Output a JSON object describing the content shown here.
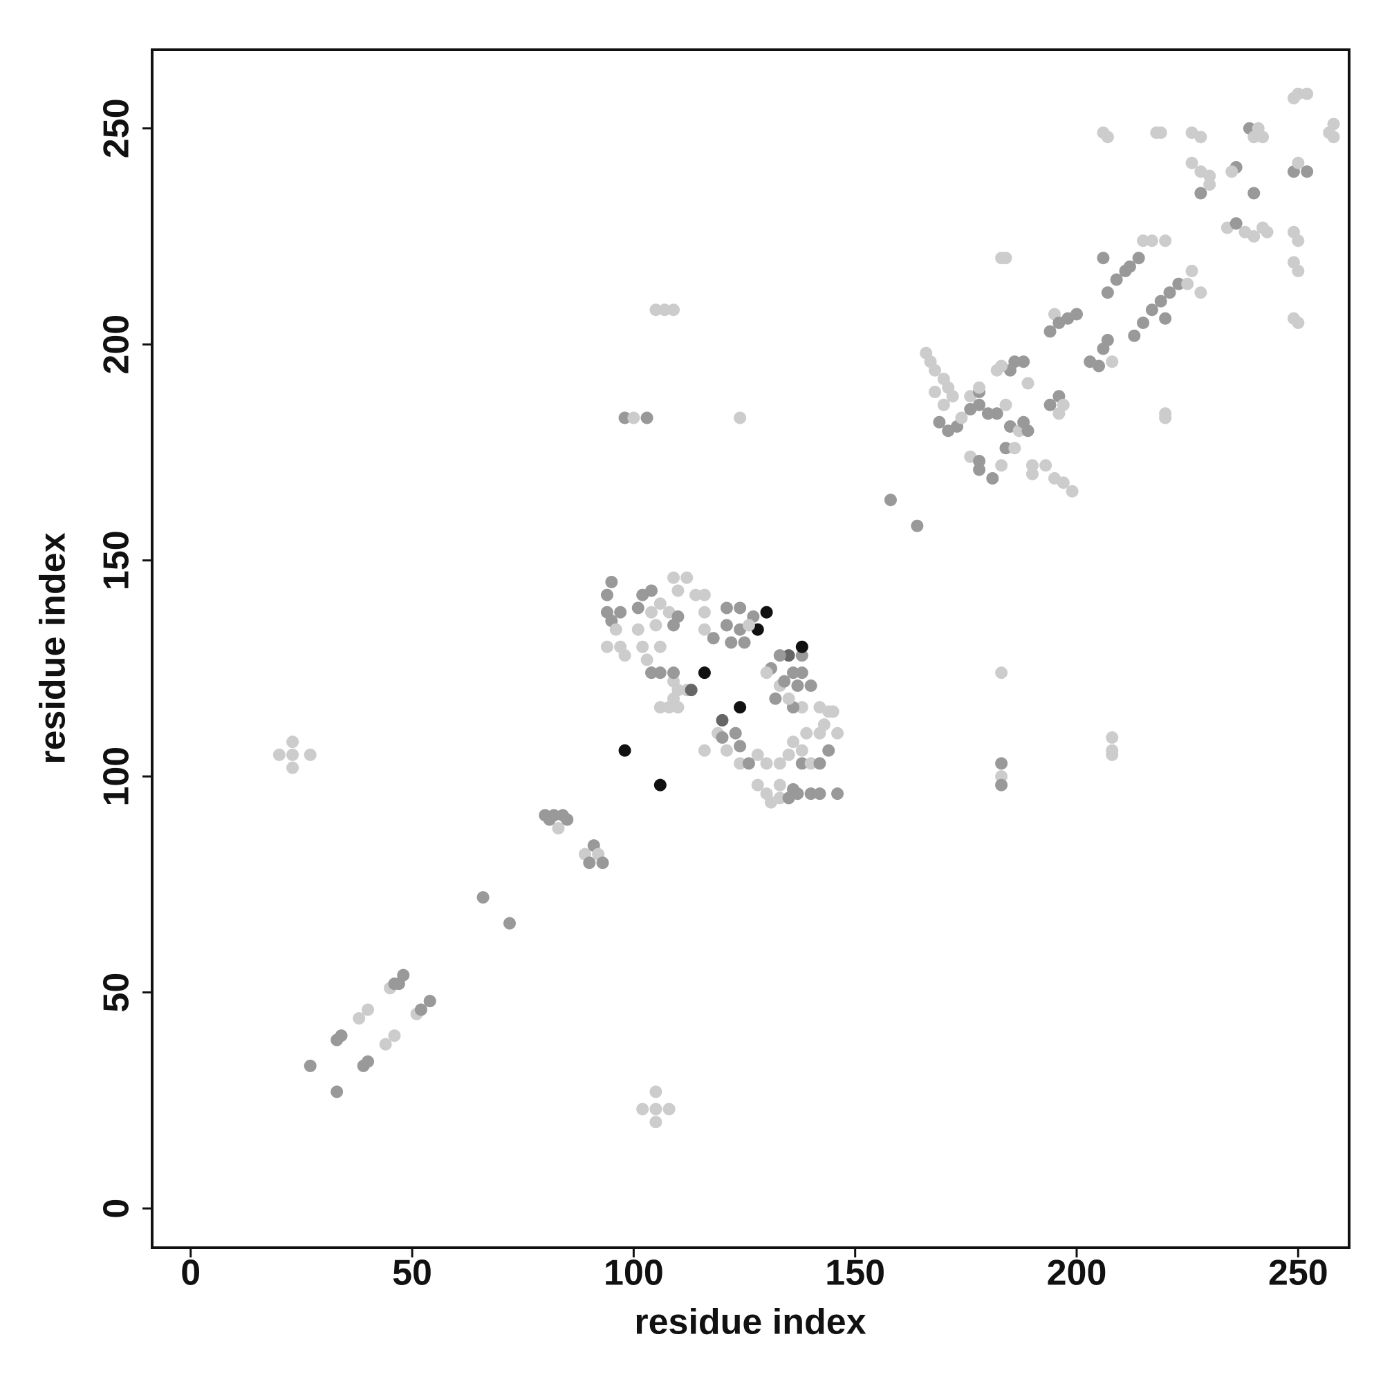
{
  "chart_data": {
    "type": "scatter",
    "xlabel": "residue index",
    "ylabel": "residue index",
    "xlim": [
      -8.7,
      261.5
    ],
    "ylim": [
      -9.1,
      268.2
    ],
    "xticks": [
      0,
      50,
      100,
      150,
      200,
      250
    ],
    "yticks": [
      0,
      50,
      100,
      150,
      200,
      250
    ],
    "x": [
      27,
      33,
      33,
      34,
      39,
      40,
      38,
      40,
      44,
      46,
      45,
      46,
      48,
      51,
      52,
      54,
      47,
      20,
      23,
      23,
      23,
      27,
      102,
      105,
      105,
      105,
      108,
      66,
      72,
      80,
      81,
      82,
      83,
      84,
      85,
      89,
      90,
      91,
      92,
      93,
      98,
      106,
      94,
      95,
      94,
      95,
      97,
      96,
      94,
      97,
      98,
      101,
      102,
      104,
      106,
      104,
      105,
      108,
      109,
      110,
      112,
      114,
      116,
      116,
      109,
      110,
      101,
      102,
      103,
      106,
      104,
      106,
      109,
      109,
      110,
      112,
      113,
      106,
      108,
      110,
      109,
      116,
      118,
      121,
      121,
      122,
      124,
      124,
      125,
      127,
      128,
      130,
      126,
      116,
      120,
      124,
      119,
      116,
      120,
      121,
      123,
      124,
      124,
      126,
      128,
      130,
      128,
      130,
      131,
      133,
      133,
      135,
      136,
      137,
      140,
      142,
      146,
      133,
      135,
      136,
      138,
      138,
      140,
      142,
      139,
      142,
      143,
      144,
      145,
      146,
      144,
      142,
      138,
      136,
      135,
      133,
      132,
      131,
      130,
      134,
      135,
      136,
      137,
      138,
      138,
      138,
      140,
      133,
      98,
      100,
      103,
      124,
      105,
      107,
      109,
      183,
      183,
      183,
      183,
      183,
      184,
      208,
      208,
      208,
      220,
      220,
      158,
      164,
      166,
      167,
      168,
      170,
      171,
      172,
      168,
      170,
      169,
      171,
      173,
      174,
      176,
      176,
      178,
      178,
      180,
      182,
      176,
      178,
      178,
      181,
      183,
      184,
      186,
      185,
      187,
      188,
      189,
      190,
      190,
      193,
      195,
      197,
      199,
      196,
      196,
      197,
      194,
      189,
      185,
      183,
      182,
      186,
      188,
      184,
      178,
      194,
      195,
      196,
      198,
      200,
      203,
      205,
      206,
      208,
      207,
      206,
      207,
      209,
      212,
      214,
      215,
      217,
      220,
      211,
      213,
      215,
      217,
      219,
      221,
      223,
      220,
      225,
      226,
      228,
      206,
      207,
      218,
      219,
      226,
      228,
      226,
      228,
      230,
      228,
      230,
      234,
      236,
      238,
      240,
      242,
      243,
      236,
      240,
      239,
      242,
      240,
      241,
      249,
      250,
      252,
      249,
      250,
      252,
      249,
      250,
      249,
      250,
      249,
      250,
      257,
      258,
      258,
      235
    ],
    "values": [
      33,
      27,
      39,
      40,
      33,
      34,
      44,
      46,
      38,
      40,
      51,
      52,
      54,
      45,
      46,
      48,
      52,
      105,
      102,
      105,
      108,
      105,
      23,
      20,
      23,
      27,
      23,
      72,
      66,
      91,
      90,
      91,
      88,
      91,
      90,
      82,
      80,
      84,
      82,
      80,
      106,
      98,
      142,
      145,
      138,
      136,
      138,
      134,
      130,
      130,
      128,
      139,
      142,
      143,
      140,
      138,
      135,
      138,
      146,
      143,
      146,
      142,
      142,
      138,
      135,
      137,
      134,
      130,
      127,
      130,
      124,
      124,
      122,
      124,
      120,
      120,
      120,
      116,
      116,
      116,
      118,
      134,
      132,
      139,
      135,
      131,
      139,
      134,
      131,
      137,
      134,
      138,
      135,
      124,
      113,
      116,
      110,
      106,
      109,
      106,
      110,
      107,
      103,
      103,
      105,
      103,
      98,
      96,
      94,
      95,
      98,
      95,
      97,
      96,
      96,
      96,
      96,
      103,
      105,
      108,
      103,
      106,
      103,
      103,
      110,
      110,
      112,
      106,
      115,
      110,
      115,
      116,
      116,
      116,
      118,
      121,
      118,
      125,
      124,
      122,
      128,
      124,
      121,
      124,
      128,
      130,
      121,
      128,
      183,
      183,
      183,
      183,
      208,
      208,
      208,
      103,
      100,
      98,
      124,
      220,
      220,
      105,
      106,
      109,
      183,
      184,
      164,
      158,
      198,
      196,
      194,
      192,
      190,
      188,
      189,
      186,
      182,
      180,
      181,
      183,
      185,
      188,
      189,
      186,
      184,
      184,
      174,
      173,
      171,
      169,
      172,
      176,
      176,
      181,
      180,
      182,
      180,
      172,
      170,
      172,
      169,
      168,
      166,
      184,
      188,
      186,
      186,
      191,
      194,
      195,
      194,
      196,
      196,
      186,
      190,
      203,
      207,
      205,
      206,
      207,
      196,
      195,
      199,
      196,
      201,
      220,
      212,
      215,
      218,
      220,
      224,
      224,
      224,
      217,
      202,
      205,
      208,
      210,
      212,
      214,
      206,
      214,
      217,
      212,
      249,
      248,
      249,
      249,
      249,
      248,
      242,
      240,
      239,
      235,
      237,
      227,
      228,
      226,
      225,
      227,
      226,
      241,
      235,
      250,
      248,
      248,
      250,
      257,
      258,
      258,
      240,
      242,
      240,
      226,
      224,
      219,
      217,
      206,
      205,
      249,
      251,
      248,
      240
    ],
    "colors": [
      "#999",
      "#999",
      "#999",
      "#999",
      "#999",
      "#999",
      "#ccc",
      "#ccc",
      "#ccc",
      "#ccc",
      "#ccc",
      "#999",
      "#999",
      "#ccc",
      "#999",
      "#999",
      "#999",
      "#ccc",
      "#ccc",
      "#ccc",
      "#ccc",
      "#ccc",
      "#ccc",
      "#ccc",
      "#ccc",
      "#ccc",
      "#ccc",
      "#999",
      "#999",
      "#999",
      "#999",
      "#999",
      "#ccc",
      "#999",
      "#999",
      "#ccc",
      "#999",
      "#999",
      "#ccc",
      "#999",
      "#111",
      "#111",
      "#999",
      "#999",
      "#999",
      "#999",
      "#999",
      "#ccc",
      "#ccc",
      "#ccc",
      "#ccc",
      "#999",
      "#999",
      "#999",
      "#ccc",
      "#ccc",
      "#ccc",
      "#ccc",
      "#ccc",
      "#ccc",
      "#ccc",
      "#ccc",
      "#ccc",
      "#ccc",
      "#999",
      "#999",
      "#ccc",
      "#ccc",
      "#ccc",
      "#ccc",
      "#999",
      "#999",
      "#ccc",
      "#999",
      "#ccc",
      "#ccc",
      "#666",
      "#ccc",
      "#ccc",
      "#ccc",
      "#ccc",
      "#ccc",
      "#999",
      "#999",
      "#999",
      "#999",
      "#999",
      "#999",
      "#999",
      "#999",
      "#111",
      "#111",
      "#ccc",
      "#111",
      "#666",
      "#111",
      "#ccc",
      "#ccc",
      "#999",
      "#ccc",
      "#999",
      "#999",
      "#ccc",
      "#999",
      "#ccc",
      "#ccc",
      "#ccc",
      "#ccc",
      "#ccc",
      "#ccc",
      "#ccc",
      "#999",
      "#999",
      "#999",
      "#999",
      "#999",
      "#999",
      "#ccc",
      "#ccc",
      "#ccc",
      "#999",
      "#ccc",
      "#ccc",
      "#999",
      "#ccc",
      "#ccc",
      "#ccc",
      "#999",
      "#ccc",
      "#ccc",
      "#ccc",
      "#ccc",
      "#ccc",
      "#999",
      "#ccc",
      "#ccc",
      "#999",
      "#999",
      "#ccc",
      "#999",
      "#666",
      "#999",
      "#999",
      "#999",
      "#999",
      "#111",
      "#999",
      "#999",
      "#999",
      "#ccc",
      "#999",
      "#ccc",
      "#ccc",
      "#ccc",
      "#ccc",
      "#999",
      "#ccc",
      "#999",
      "#ccc",
      "#ccc",
      "#ccc",
      "#ccc",
      "#ccc",
      "#ccc",
      "#ccc",
      "#ccc",
      "#999",
      "#999",
      "#ccc",
      "#ccc",
      "#ccc",
      "#ccc",
      "#ccc",
      "#ccc",
      "#ccc",
      "#ccc",
      "#999",
      "#999",
      "#999",
      "#ccc",
      "#999",
      "#ccc",
      "#999",
      "#999",
      "#999",
      "#999",
      "#ccc",
      "#999",
      "#999",
      "#999",
      "#ccc",
      "#999",
      "#ccc",
      "#999",
      "#ccc",
      "#999",
      "#999",
      "#ccc",
      "#ccc",
      "#ccc",
      "#ccc",
      "#ccc",
      "#ccc",
      "#ccc",
      "#999",
      "#ccc",
      "#999",
      "#ccc",
      "#999",
      "#ccc",
      "#ccc",
      "#999",
      "#999",
      "#ccc",
      "#ccc",
      "#999",
      "#ccc",
      "#999",
      "#999",
      "#999",
      "#999",
      "#999",
      "#999",
      "#ccc",
      "#999",
      "#999",
      "#999",
      "#999",
      "#999",
      "#999",
      "#ccc",
      "#ccc",
      "#ccc",
      "#999",
      "#999",
      "#999",
      "#999",
      "#999",
      "#999",
      "#999",
      "#999",
      "#ccc",
      "#ccc",
      "#ccc",
      "#ccc",
      "#ccc",
      "#ccc",
      "#ccc",
      "#ccc",
      "#ccc",
      "#ccc",
      "#ccc",
      "#ccc",
      "#999",
      "#ccc",
      "#ccc",
      "#999",
      "#ccc",
      "#ccc",
      "#ccc",
      "#ccc",
      "#999",
      "#999",
      "#999",
      "#ccc",
      "#ccc",
      "#ccc",
      "#ccc",
      "#ccc",
      "#ccc",
      "#999",
      "#ccc",
      "#999",
      "#ccc",
      "#ccc",
      "#ccc",
      "#ccc",
      "#ccc",
      "#ccc",
      "#ccc",
      "#ccc",
      "#ccc",
      "#ccc"
    ]
  }
}
